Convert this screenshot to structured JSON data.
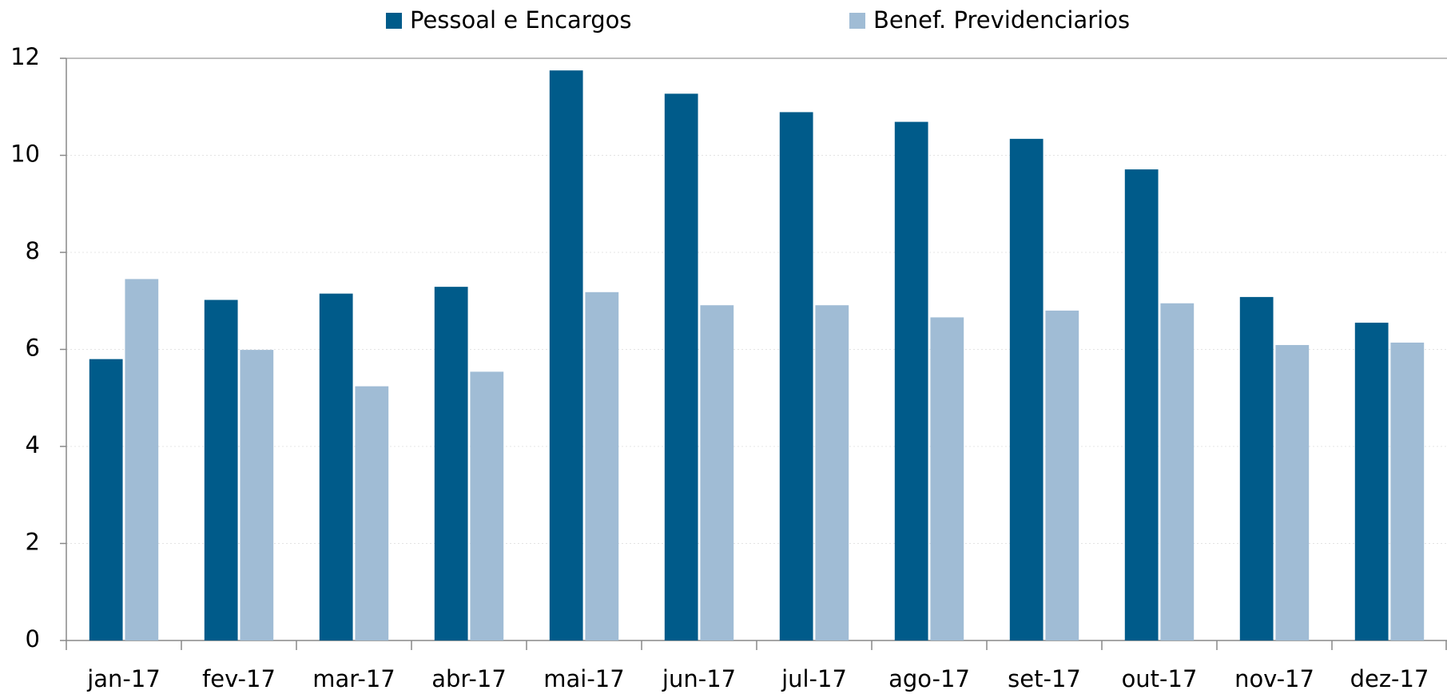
{
  "chart_data": {
    "type": "bar",
    "categories": [
      "jan-17",
      "fev-17",
      "mar-17",
      "abr-17",
      "mai-17",
      "jun-17",
      "jul-17",
      "ago-17",
      "set-17",
      "out-17",
      "nov-17",
      "dez-17"
    ],
    "series": [
      {
        "name": "Pessoal e Encargos",
        "color": "#005b8a",
        "values": [
          5.8,
          7.02,
          7.15,
          7.29,
          11.75,
          11.27,
          10.89,
          10.69,
          10.34,
          9.71,
          7.08,
          6.55
        ]
      },
      {
        "name": "Benef. Previdenciarios",
        "color": "#a0bcd5",
        "values": [
          7.45,
          5.99,
          5.24,
          5.54,
          7.18,
          6.91,
          6.91,
          6.66,
          6.8,
          6.95,
          6.09,
          6.14
        ]
      }
    ],
    "ylim": [
      0,
      12
    ],
    "yticks": [
      0,
      2,
      4,
      6,
      8,
      10,
      12
    ],
    "grid": true
  }
}
